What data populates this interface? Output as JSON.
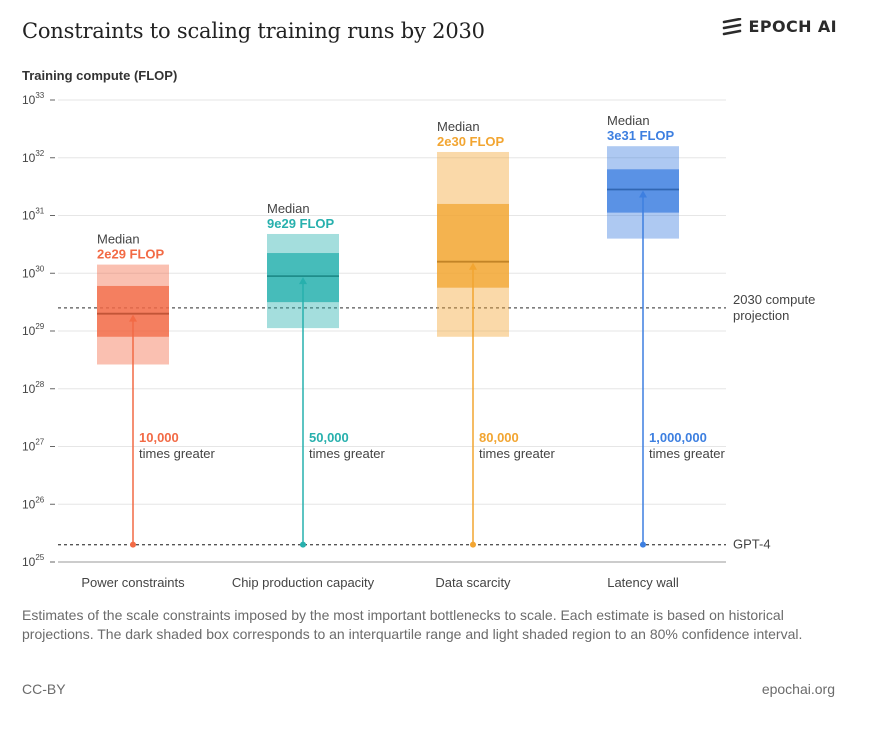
{
  "header": {
    "title": "Constraints to scaling training runs by 2030",
    "brand": "EPOCH AI"
  },
  "footer": {
    "caption": "Estimates of the scale constraints imposed by the most important bottlenecks to scale. Each estimate is based on historical projections. The dark shaded box corresponds to an interquartile range and light shaded region to an 80% confidence interval.",
    "license": "CC-BY",
    "site": "epochai.org"
  },
  "chart_data": {
    "type": "box",
    "ylabel": "Training compute (FLOP)",
    "yscale": "log",
    "ylim_exponent": [
      25,
      33
    ],
    "yticks": [
      25,
      26,
      27,
      28,
      29,
      30,
      31,
      32,
      33
    ],
    "ytick_base": "10",
    "grid": "horizontal",
    "categories": [
      "Power constraints",
      "Chip production capacity",
      "Data scarcity",
      "Latency wall"
    ],
    "series": [
      {
        "category": "Power constraints",
        "color": "#f26a45",
        "median_log10": 29.3,
        "iqr_log10": [
          28.9,
          29.78
        ],
        "ci80_log10": [
          28.42,
          30.15
        ],
        "median_label": "Median",
        "median_value": "2e29 FLOP",
        "multiplier": "10,000",
        "multiplier_suffix": "times greater"
      },
      {
        "category": "Chip production capacity",
        "color": "#27b0ad",
        "median_log10": 29.95,
        "iqr_log10": [
          29.5,
          30.35
        ],
        "ci80_log10": [
          29.05,
          30.68
        ],
        "median_label": "Median",
        "median_value": "9e29 FLOP",
        "multiplier": "50,000",
        "multiplier_suffix": "times greater"
      },
      {
        "category": "Data scarcity",
        "color": "#f2a531",
        "median_log10": 30.2,
        "iqr_log10": [
          29.75,
          31.2
        ],
        "ci80_log10": [
          28.9,
          32.1
        ],
        "median_label": "Median",
        "median_value": "2e30 FLOP",
        "multiplier": "80,000",
        "multiplier_suffix": "times greater"
      },
      {
        "category": "Latency wall",
        "color": "#3d7fe0",
        "median_log10": 31.45,
        "iqr_log10": [
          31.05,
          31.8
        ],
        "ci80_log10": [
          30.6,
          32.2
        ],
        "median_label": "Median",
        "median_value": "3e31 FLOP",
        "multiplier": "1,000,000",
        "multiplier_suffix": "times greater"
      }
    ],
    "reference_lines": [
      {
        "label_lines": [
          "2030 compute",
          "projection"
        ],
        "value_log10": 29.4
      },
      {
        "label_lines": [
          "GPT-4"
        ],
        "value_log10": 25.3
      }
    ],
    "arrow_start_log10": 25.3
  }
}
